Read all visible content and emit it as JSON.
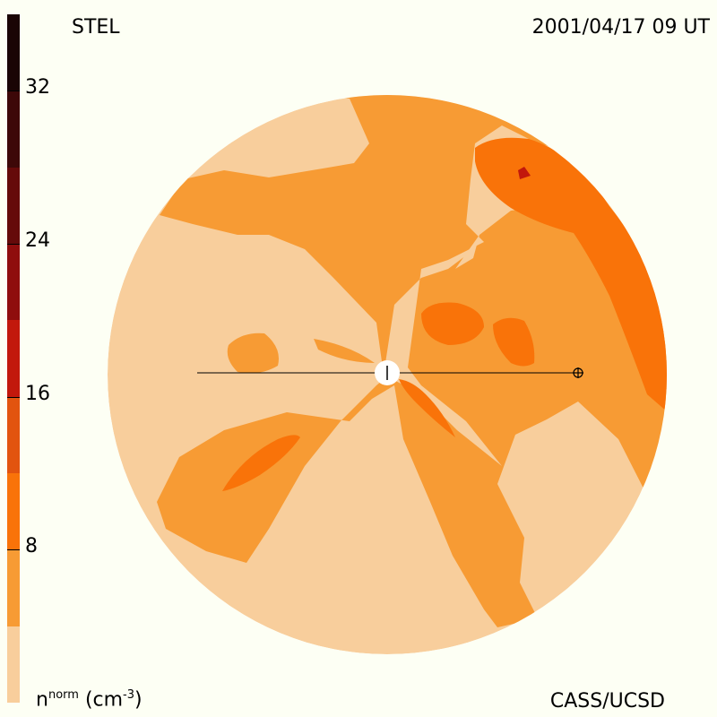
{
  "header": {
    "title_left": "STEL",
    "title_right": "2001/04/17 09 UT"
  },
  "footer": {
    "credit": "CASS/UCSD",
    "unit_base": "n",
    "unit_sup": "norm",
    "unit_rest": "(cm",
    "unit_exp": "-3",
    "unit_close": ")"
  },
  "colorbar": {
    "colors": [
      "#1a0505",
      "#3d0808",
      "#650a0a",
      "#8f0d0d",
      "#c2180c",
      "#e2540f",
      "#f97309",
      "#f79b34",
      "#f8ce9c"
    ],
    "ticks": [
      {
        "label": "32",
        "value": 32
      },
      {
        "label": "24",
        "value": 24
      },
      {
        "label": "16",
        "value": 16
      },
      {
        "label": "8",
        "value": 8
      }
    ],
    "min": 0,
    "max": 36
  },
  "map": {
    "background_color": "#f8ce9c",
    "level1_color": "#f79b34",
    "level2_color": "#f97309",
    "level3_color": "#c2180c"
  }
}
